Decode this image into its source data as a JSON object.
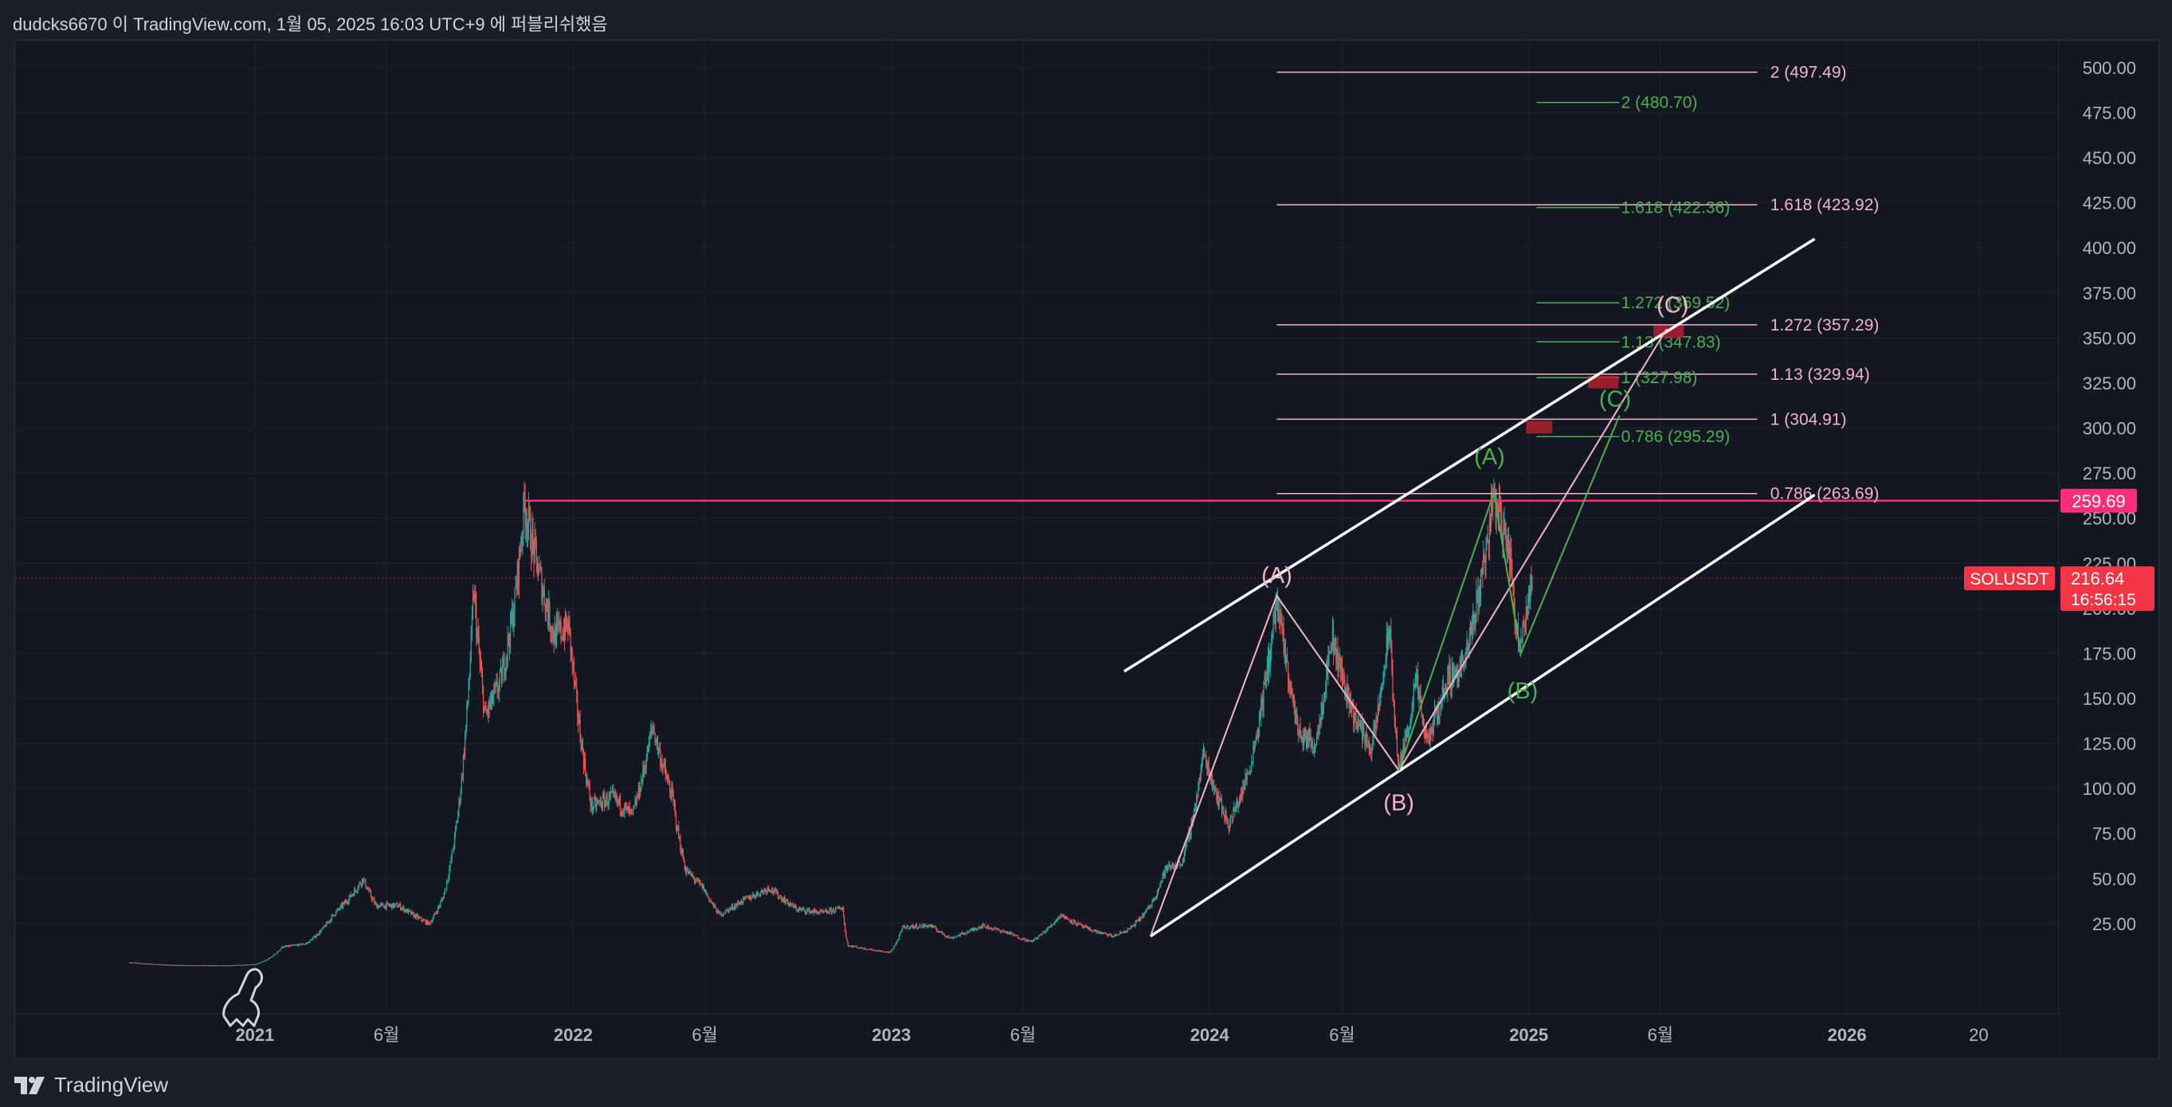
{
  "header": {
    "attribution": "dudcks6670 이 TradingView.com, 1월 05, 2025 16:03 UTC+9 에 퍼블리쉬했음"
  },
  "footer": {
    "brand": "TradingView",
    "icon": "tradingview-logo-icon"
  },
  "colors": {
    "background": "#131722",
    "grid": "#1e2230",
    "axis_text": "#b2b5be",
    "pink": "#f3b3c8",
    "green": "#4caf50",
    "white": "#ffffff",
    "resistance": "#ff2e7a",
    "price_tag": "#f23645",
    "candle_up": "#26a69a",
    "candle_down": "#ef5350",
    "box": "#b2202f"
  },
  "chart_data": {
    "type": "candlestick",
    "symbol": "SOLUSDT",
    "last_price": "216.64",
    "countdown": "16:56:15",
    "resistance_level": "259.69",
    "y_axis": {
      "ticks": [
        "25.00",
        "50.00",
        "75.00",
        "100.00",
        "125.00",
        "150.00",
        "175.00",
        "200.00",
        "225.00",
        "250.00",
        "275.00",
        "300.00",
        "325.00",
        "350.00",
        "375.00",
        "400.00",
        "425.00",
        "450.00",
        "475.00",
        "500.00"
      ],
      "range": [
        -25,
        515
      ]
    },
    "x_axis": {
      "ticks": [
        {
          "date": "2021-01-01",
          "label": "2021",
          "bold": true
        },
        {
          "date": "2021-06-01",
          "label": "6월",
          "bold": false
        },
        {
          "date": "2022-01-01",
          "label": "2022",
          "bold": true
        },
        {
          "date": "2022-06-01",
          "label": "6월",
          "bold": false
        },
        {
          "date": "2023-01-01",
          "label": "2023",
          "bold": true
        },
        {
          "date": "2023-06-01",
          "label": "6월",
          "bold": false
        },
        {
          "date": "2024-01-01",
          "label": "2024",
          "bold": true
        },
        {
          "date": "2024-06-01",
          "label": "6월",
          "bold": false
        },
        {
          "date": "2025-01-01",
          "label": "2025",
          "bold": true
        },
        {
          "date": "2025-06-01",
          "label": "6월",
          "bold": false
        },
        {
          "date": "2026-01-01",
          "label": "2026",
          "bold": true
        },
        {
          "date": "2026-06-01",
          "label": "20",
          "bold": false
        }
      ],
      "range": [
        "2020-04-01",
        "2026-09-01"
      ]
    },
    "price_path": [
      [
        "2020-08-10",
        3.5
      ],
      [
        "2020-10-01",
        2
      ],
      [
        "2020-12-01",
        1.8
      ],
      [
        "2021-01-01",
        2.5
      ],
      [
        "2021-02-01",
        12
      ],
      [
        "2021-03-01",
        14
      ],
      [
        "2021-04-01",
        30
      ],
      [
        "2021-05-05",
        50
      ],
      [
        "2021-05-20",
        35
      ],
      [
        "2021-06-15",
        35
      ],
      [
        "2021-07-20",
        25
      ],
      [
        "2021-08-05",
        40
      ],
      [
        "2021-08-25",
        100
      ],
      [
        "2021-09-09",
        210
      ],
      [
        "2021-09-22",
        140
      ],
      [
        "2021-10-10",
        160
      ],
      [
        "2021-10-25",
        200
      ],
      [
        "2021-11-06",
        258
      ],
      [
        "2021-11-25",
        215
      ],
      [
        "2021-12-10",
        185
      ],
      [
        "2021-12-27",
        190
      ],
      [
        "2022-01-22",
        90
      ],
      [
        "2022-02-15",
        95
      ],
      [
        "2022-03-10",
        85
      ],
      [
        "2022-04-02",
        135
      ],
      [
        "2022-04-25",
        95
      ],
      [
        "2022-05-10",
        55
      ],
      [
        "2022-05-30",
        45
      ],
      [
        "2022-06-18",
        30
      ],
      [
        "2022-07-15",
        38
      ],
      [
        "2022-08-14",
        45
      ],
      [
        "2022-09-15",
        33
      ],
      [
        "2022-10-15",
        31
      ],
      [
        "2022-11-06",
        34
      ],
      [
        "2022-11-12",
        13
      ],
      [
        "2022-12-30",
        9
      ],
      [
        "2023-01-14",
        23
      ],
      [
        "2023-02-15",
        24
      ],
      [
        "2023-03-10",
        17
      ],
      [
        "2023-04-15",
        24
      ],
      [
        "2023-05-15",
        20
      ],
      [
        "2023-06-10",
        15
      ],
      [
        "2023-07-14",
        30
      ],
      [
        "2023-08-15",
        22
      ],
      [
        "2023-09-12",
        18
      ],
      [
        "2023-10-01",
        22
      ],
      [
        "2023-10-25",
        35
      ],
      [
        "2023-11-11",
        55
      ],
      [
        "2023-12-01",
        60
      ],
      [
        "2023-12-25",
        120
      ],
      [
        "2024-01-23",
        80
      ],
      [
        "2024-02-15",
        110
      ],
      [
        "2024-03-18",
        205
      ],
      [
        "2024-04-13",
        130
      ],
      [
        "2024-05-01",
        125
      ],
      [
        "2024-05-20",
        185
      ],
      [
        "2024-06-15",
        140
      ],
      [
        "2024-07-05",
        122
      ],
      [
        "2024-07-25",
        190
      ],
      [
        "2024-08-05",
        110
      ],
      [
        "2024-08-25",
        160
      ],
      [
        "2024-09-06",
        125
      ],
      [
        "2024-09-29",
        160
      ],
      [
        "2024-10-20",
        170
      ],
      [
        "2024-11-22",
        264
      ],
      [
        "2024-12-10",
        230
      ],
      [
        "2024-12-20",
        180
      ],
      [
        "2025-01-05",
        217
      ]
    ],
    "channel_lines": [
      {
        "name": "channel-upper-line",
        "from": [
          "2023-09-25",
          165
        ],
        "to": [
          "2025-11-25",
          405
        ]
      },
      {
        "name": "channel-lower-line",
        "from": [
          "2023-10-25",
          18
        ],
        "to": [
          "2025-11-25",
          263
        ]
      }
    ],
    "wave_paths": [
      {
        "name": "pink-wave-path",
        "color": "pink",
        "points": [
          [
            "2023-10-25",
            18
          ],
          [
            "2024-03-18",
            207
          ],
          [
            "2024-08-05",
            110
          ],
          [
            "2025-06-08",
            355
          ]
        ]
      },
      {
        "name": "green-wave-path",
        "color": "green",
        "points": [
          [
            "2024-08-05",
            110
          ],
          [
            "2024-11-22",
            264
          ],
          [
            "2024-12-23",
            175
          ],
          [
            "2025-04-15",
            307
          ]
        ]
      }
    ],
    "wave_labels": [
      {
        "name": "pink-wave-label-a",
        "text": "(A)",
        "at": [
          "2024-03-18",
          214
        ],
        "color": "pink"
      },
      {
        "name": "pink-wave-label-b",
        "text": "(B)",
        "at": [
          "2024-08-05",
          88
        ],
        "color": "pink"
      },
      {
        "name": "pink-wave-label-c",
        "text": "(C)",
        "at": [
          "2025-06-15",
          364
        ],
        "color": "pink"
      },
      {
        "name": "green-wave-label-a",
        "text": "(A)",
        "at": [
          "2024-11-17",
          280
        ],
        "color": "green"
      },
      {
        "name": "green-wave-label-b",
        "text": "(B)",
        "at": [
          "2024-12-25",
          150
        ],
        "color": "green"
      },
      {
        "name": "green-wave-label-c",
        "text": "(C)",
        "at": [
          "2025-04-10",
          312
        ],
        "color": "green"
      }
    ],
    "fib_pink": {
      "from": "2024-03-18",
      "to": "2025-09-20",
      "label_x": "2025-10-05",
      "levels": [
        {
          "value": 497.49,
          "label": "2 (497.49)"
        },
        {
          "value": 423.92,
          "label": "1.618 (423.92)"
        },
        {
          "value": 357.29,
          "label": "1.272 (357.29)"
        },
        {
          "value": 329.94,
          "label": "1.13 (329.94)"
        },
        {
          "value": 304.91,
          "label": "1 (304.91)"
        },
        {
          "value": 263.69,
          "label": "0.786 (263.69)"
        }
      ]
    },
    "fib_green": {
      "from": "2025-01-10",
      "to": "2025-04-15",
      "label_x": "2025-04-17",
      "levels": [
        {
          "value": 480.7,
          "label": "2 (480.70)"
        },
        {
          "value": 422.36,
          "label": "1.618 (422.36)"
        },
        {
          "value": 369.52,
          "label": "1.272 (369.52)"
        },
        {
          "value": 347.83,
          "label": "1.13 (347.83)"
        },
        {
          "value": 327.98,
          "label": "1 (327.98)"
        },
        {
          "value": 295.29,
          "label": "0.786 (295.29)"
        }
      ]
    },
    "target_boxes": [
      {
        "name": "target-box-1",
        "x": [
          "2024-12-29",
          "2025-01-28"
        ],
        "y": [
          297,
          304
        ]
      },
      {
        "name": "target-box-2",
        "x": [
          "2025-03-10",
          "2025-04-14"
        ],
        "y": [
          322,
          329
        ]
      },
      {
        "name": "target-box-3",
        "x": [
          "2025-05-24",
          "2025-06-28"
        ],
        "y": [
          350,
          357
        ]
      }
    ],
    "resistance_line": {
      "from": "2021-11-06",
      "value": 259.69
    },
    "last_price_value": 216.64
  }
}
